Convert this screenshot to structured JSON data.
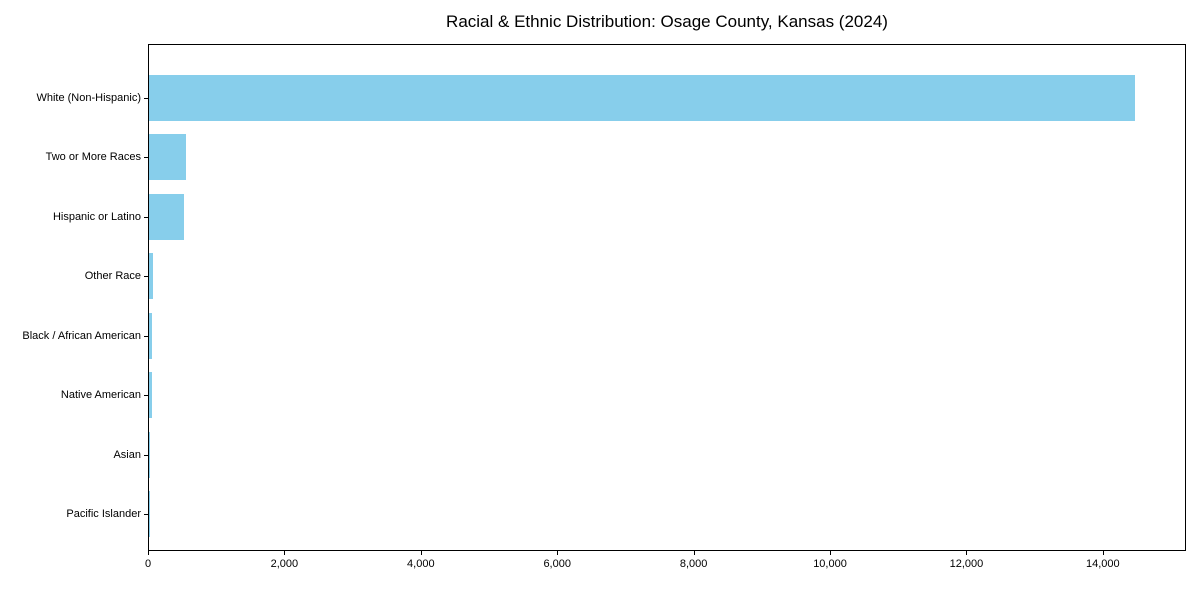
{
  "chart_data": {
    "type": "bar",
    "orientation": "horizontal",
    "title": "Racial & Ethnic Distribution: Osage County, Kansas (2024)",
    "categories": [
      "White (Non-Hispanic)",
      "Two or More Races",
      "Hispanic or Latino",
      "Other Race",
      "Black / African American",
      "Native American",
      "Asian",
      "Pacific Islander"
    ],
    "values": [
      14460,
      540,
      510,
      65,
      38,
      50,
      15,
      3
    ],
    "bar_color": "#87CEEB",
    "axis_color": "#000000",
    "text_color": "#000000",
    "background_color": "#ffffff",
    "xlabel": "",
    "ylabel": "",
    "xlim": [
      0,
      15190
    ],
    "x_ticks": [
      {
        "value": 0,
        "label": "0"
      },
      {
        "value": 2000,
        "label": "2,000"
      },
      {
        "value": 4000,
        "label": "4,000"
      },
      {
        "value": 6000,
        "label": "6,000"
      },
      {
        "value": 8000,
        "label": "8,000"
      },
      {
        "value": 10000,
        "label": "10,000"
      },
      {
        "value": 12000,
        "label": "12,000"
      },
      {
        "value": 14000,
        "label": "14,000"
      }
    ],
    "grid": false,
    "legend": false
  }
}
